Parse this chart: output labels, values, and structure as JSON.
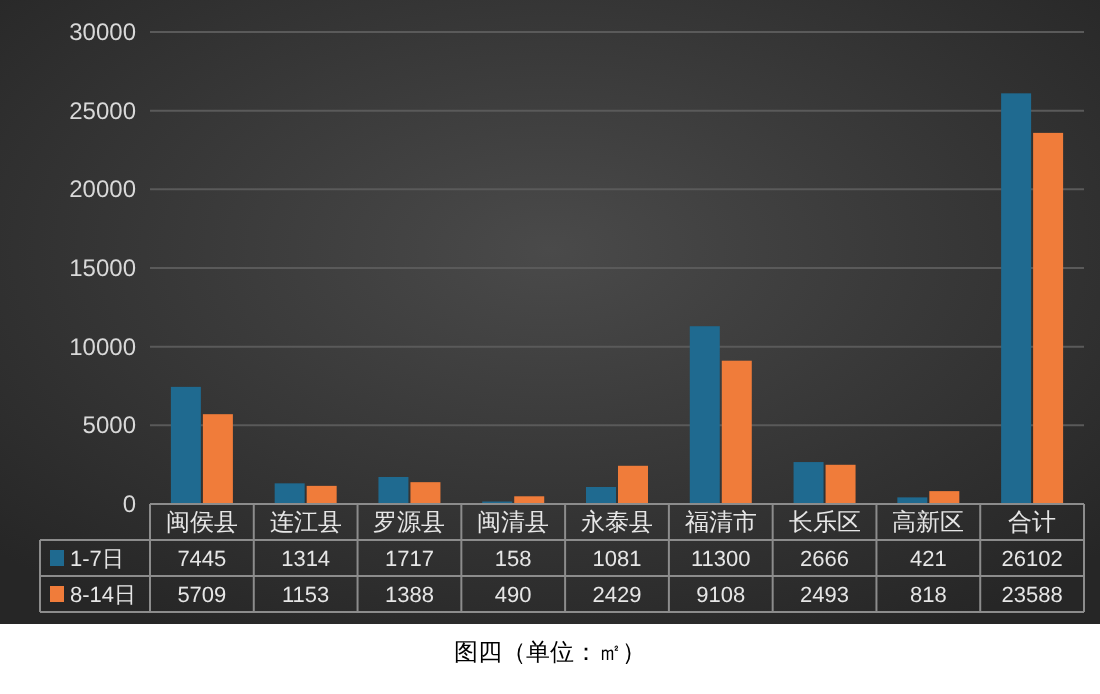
{
  "chart_data": {
    "type": "bar",
    "categories": [
      "闽侯县",
      "连江县",
      "罗源县",
      "闽清县",
      "永泰县",
      "福清市",
      "长乐区",
      "高新区",
      "合计"
    ],
    "series": [
      {
        "name": "1-7日",
        "color": "#1f6a90",
        "values": [
          7445,
          1314,
          1717,
          158,
          1081,
          11300,
          2666,
          421,
          26102
        ]
      },
      {
        "name": "8-14日",
        "color": "#f07c3a",
        "values": [
          5709,
          1153,
          1388,
          490,
          2429,
          9108,
          2493,
          818,
          23588
        ]
      }
    ],
    "ylim": [
      0,
      30000
    ],
    "yticks": [
      0,
      5000,
      10000,
      15000,
      20000,
      25000,
      30000
    ],
    "grid": "y",
    "legend": "bottom",
    "data_labels": true,
    "annotations": [
      "图四（单位：㎡）"
    ]
  }
}
